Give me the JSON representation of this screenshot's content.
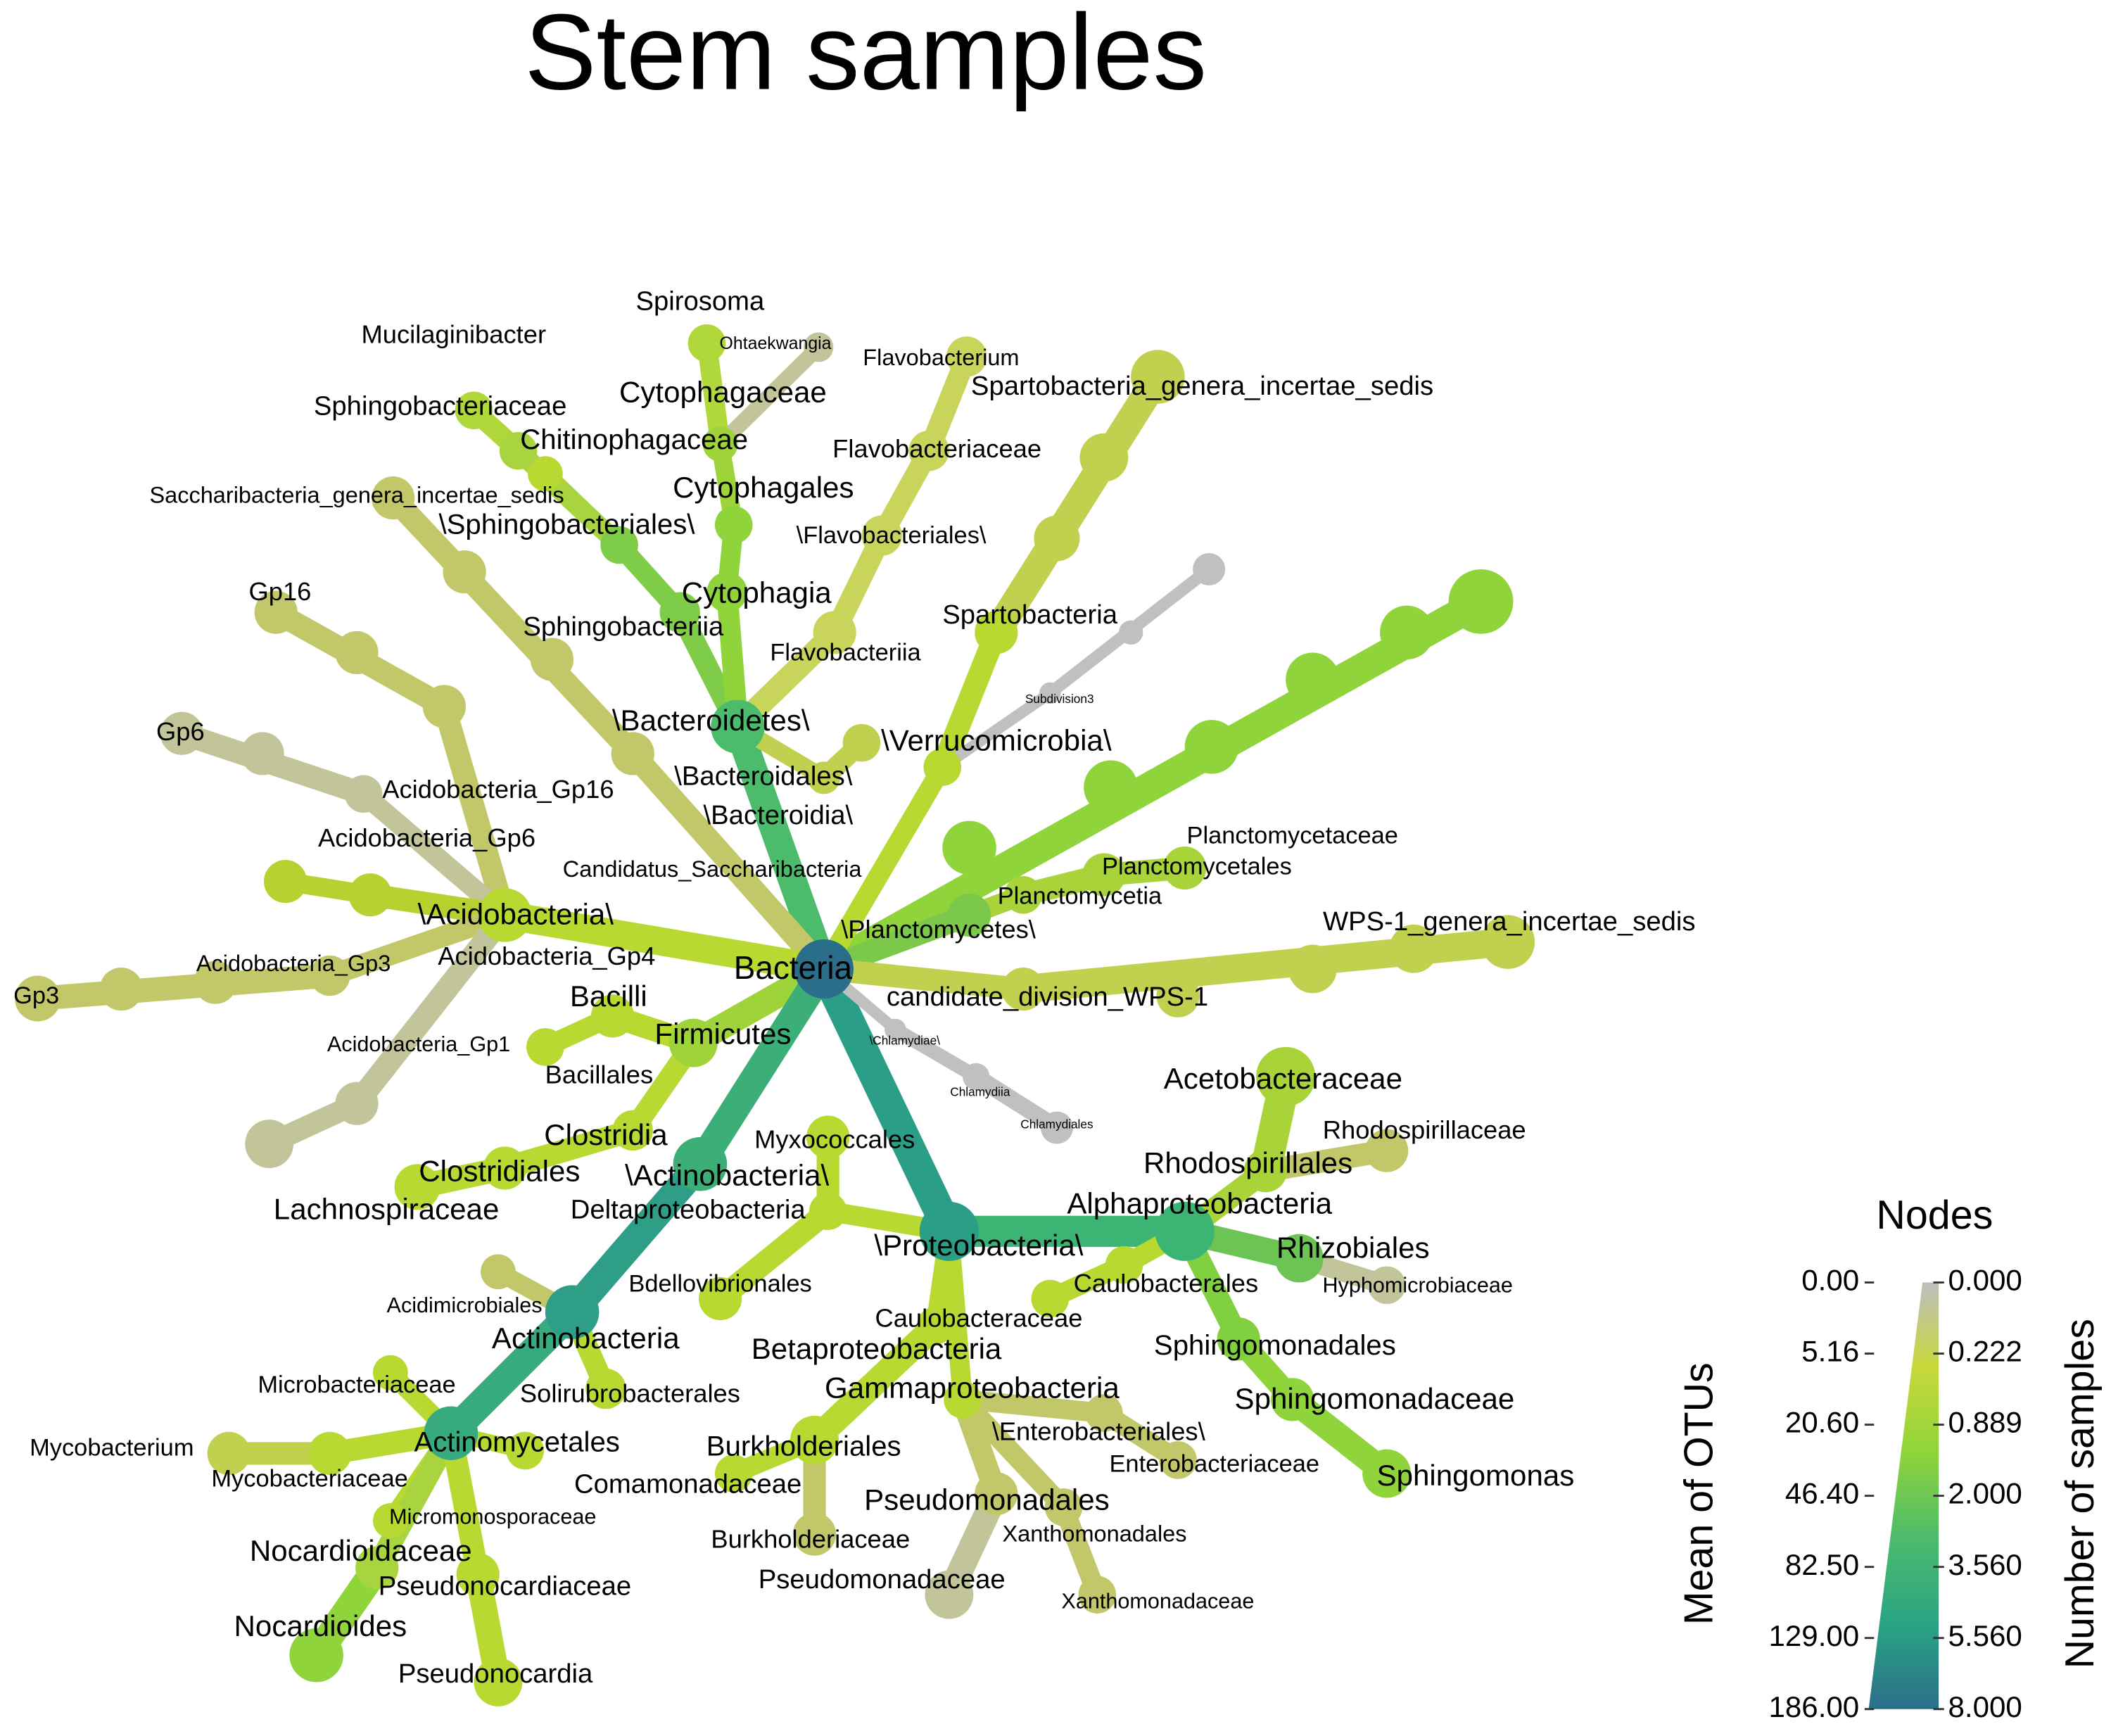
{
  "title": "Stem samples",
  "nodes": [
    {
      "label": "Bacteria",
      "parent": null,
      "color": "#2b6e8a"
    },
    {
      "label": "\\Bacteroidetes\\",
      "parent": 0,
      "color": "#4cbb6c"
    },
    {
      "label": "\\Bacteroidia\\",
      "parent": 1,
      "color": "#c2d050"
    },
    {
      "label": "\\Bacteroidales\\",
      "parent": 2,
      "color": "#c2d050"
    },
    {
      "label": "Sphingobacteriia",
      "parent": 1,
      "color": "#7fcc48"
    },
    {
      "label": "\\Sphingobacteriales\\",
      "parent": 4,
      "color": "#7fcc48"
    },
    {
      "label": "Chitinophagaceae",
      "parent": 5,
      "color": "#b8d832"
    },
    {
      "label": "Sphingobacteriaceae",
      "parent": 5,
      "color": "#a8d440"
    },
    {
      "label": "Mucilaginibacter",
      "parent": 7,
      "color": "#b0d83a"
    },
    {
      "label": "Cytophagia",
      "parent": 1,
      "color": "#8ed43a"
    },
    {
      "label": "Cytophagales",
      "parent": 9,
      "color": "#8ed43a"
    },
    {
      "label": "Cytophagaceae",
      "parent": 10,
      "color": "#9ed43a"
    },
    {
      "label": "Spirosoma",
      "parent": 11,
      "color": "#b0d83a"
    },
    {
      "label": "Ohtaekwangia",
      "parent": 11,
      "color": "#c2c49a"
    },
    {
      "label": "Flavobacteriia",
      "parent": 1,
      "color": "#c8d45a"
    },
    {
      "label": "\\Flavobacteriales\\",
      "parent": 14,
      "color": "#c8d45a"
    },
    {
      "label": "Flavobacteriaceae",
      "parent": 15,
      "color": "#c8d45a"
    },
    {
      "label": "Flavobacterium",
      "parent": 16,
      "color": "#c8d45a"
    },
    {
      "label": "Candidatus_Saccharibacteria",
      "parent": 0,
      "color": "#c2c86a"
    },
    {
      "label": "Saccharibacteria_genera_incertae_sedis",
      "parent": 18,
      "color": "#c2c86a"
    },
    {
      "label": "\\Acidobacteria\\",
      "parent": 0,
      "color": "#b8d832"
    },
    {
      "label": "Acidobacteria_Gp16",
      "parent": 20,
      "color": "#c2c86a"
    },
    {
      "label": "Gp16",
      "parent": 21,
      "color": "#c2c86a"
    },
    {
      "label": "Acidobacteria_Gp6",
      "parent": 20,
      "color": "#c2c49a"
    },
    {
      "label": "Gp6",
      "parent": 23,
      "color": "#c2c49a"
    },
    {
      "label": "Acidobacteria_Gp4",
      "parent": 20,
      "color": "#b8d030"
    },
    {
      "label": "Acidobacteria_Gp3",
      "parent": 20,
      "color": "#c2c86a"
    },
    {
      "label": "Gp3",
      "parent": 26,
      "color": "#c2c86a"
    },
    {
      "label": "Acidobacteria_Gp1",
      "parent": 20,
      "color": "#c2c49a"
    },
    {
      "label": "Firmicutes",
      "parent": 0,
      "color": "#9ed43a"
    },
    {
      "label": "Bacilli",
      "parent": 29,
      "color": "#b8d832"
    },
    {
      "label": "Bacillales",
      "parent": 30,
      "color": "#b8d832"
    },
    {
      "label": "Clostridia",
      "parent": 29,
      "color": "#b8d832"
    },
    {
      "label": "Clostridiales",
      "parent": 32,
      "color": "#b8d832"
    },
    {
      "label": "Lachnospiraceae",
      "parent": 33,
      "color": "#b8d832"
    },
    {
      "label": "\\Actinobacteria\\",
      "parent": 0,
      "color": "#3cae78"
    },
    {
      "label": "Actinobacteria",
      "parent": 35,
      "color": "#2e9e86"
    },
    {
      "label": "Acidimicrobiales",
      "parent": 36,
      "color": "#c2c86a"
    },
    {
      "label": "Solirubrobacterales",
      "parent": 36,
      "color": "#b8d832"
    },
    {
      "label": "Actinomycetales",
      "parent": 36,
      "color": "#38aa80"
    },
    {
      "label": "Microbacteriaceae",
      "parent": 39,
      "color": "#b8d832"
    },
    {
      "label": "Mycobacteriaceae",
      "parent": 39,
      "color": "#b8d832"
    },
    {
      "label": "Mycobacterium",
      "parent": 41,
      "color": "#c2d050"
    },
    {
      "label": "Micromonosporaceae",
      "parent": 39,
      "color": "#b8d832"
    },
    {
      "label": "Nocardioidaceae",
      "parent": 39,
      "color": "#a8d440"
    },
    {
      "label": "Nocardioides",
      "parent": 44,
      "color": "#8ed43a"
    },
    {
      "label": "Pseudonocardiaceae",
      "parent": 39,
      "color": "#b8d832"
    },
    {
      "label": "Pseudonocardia",
      "parent": 46,
      "color": "#b8d832"
    },
    {
      "label": "\\Proteobacteria\\",
      "parent": 0,
      "color": "#2a9e86"
    },
    {
      "label": "Deltaproteobacteria",
      "parent": 48,
      "color": "#b8d832"
    },
    {
      "label": "Myxococcales",
      "parent": 49,
      "color": "#b8d832"
    },
    {
      "label": "Bdellovibrionales",
      "parent": 49,
      "color": "#b8d832"
    },
    {
      "label": "Alphaproteobacteria",
      "parent": 48,
      "color": "#3cb474"
    },
    {
      "label": "Rhodospirillales",
      "parent": 52,
      "color": "#a8d43a"
    },
    {
      "label": "Acetobacteraceae",
      "parent": 53,
      "color": "#a8d43a"
    },
    {
      "label": "Rhodospirillaceae",
      "parent": 53,
      "color": "#c2c86a"
    },
    {
      "label": "Rhizobiales",
      "parent": 52,
      "color": "#6cc454"
    },
    {
      "label": "Hyphomicrobiaceae",
      "parent": 56,
      "color": "#c2c49a"
    },
    {
      "label": "Caulobacterales",
      "parent": 52,
      "color": "#b8d832"
    },
    {
      "label": "Caulobacteraceae",
      "parent": 58,
      "color": "#b8d832"
    },
    {
      "label": "Sphingomonadales",
      "parent": 52,
      "color": "#80d040"
    },
    {
      "label": "Sphingomonadaceae",
      "parent": 60,
      "color": "#8ed43a"
    },
    {
      "label": "Sphingomonas",
      "parent": 61,
      "color": "#8ed43a"
    },
    {
      "label": "Betaproteobacteria",
      "parent": 48,
      "color": "#b8d832"
    },
    {
      "label": "Burkholderiales",
      "parent": 63,
      "color": "#b8d832"
    },
    {
      "label": "Comamonadaceae",
      "parent": 64,
      "color": "#b8d832"
    },
    {
      "label": "Burkholderiaceae",
      "parent": 64,
      "color": "#c2c86a"
    },
    {
      "label": "Gammaproteobacteria",
      "parent": 48,
      "color": "#b8d832"
    },
    {
      "label": "\\Enterobacteriales\\",
      "parent": 67,
      "color": "#c2c86a"
    },
    {
      "label": "Enterobacteriaceae",
      "parent": 68,
      "color": "#c2c86a"
    },
    {
      "label": "Pseudomonadales",
      "parent": 67,
      "color": "#c2c86a"
    },
    {
      "label": "Pseudomonadaceae",
      "parent": 70,
      "color": "#c2c49a"
    },
    {
      "label": "Xanthomonadales",
      "parent": 67,
      "color": "#c2c86a"
    },
    {
      "label": "Xanthomonadaceae",
      "parent": 72,
      "color": "#c2c86a"
    },
    {
      "label": "\\Chlamydiae\\",
      "parent": 0,
      "color": "#c0c0c0"
    },
    {
      "label": "Chlamydiia",
      "parent": 74,
      "color": "#c0c0c0"
    },
    {
      "label": "Chlamydiales",
      "parent": 75,
      "color": "#c0c0c0"
    },
    {
      "label": "\\Planctomycetes\\",
      "parent": 0,
      "color": "#7cc84a"
    },
    {
      "label": "Planctomycetia",
      "parent": 77,
      "color": "#a8d43a"
    },
    {
      "label": "Planctomycetales",
      "parent": 78,
      "color": "#a8d43a"
    },
    {
      "label": "Planctomycetaceae",
      "parent": 79,
      "color": "#a8d43a"
    },
    {
      "label": "\\Verrucomicrobia\\",
      "parent": 0,
      "color": "#b8d832"
    },
    {
      "label": "Spartobacteria",
      "parent": 81,
      "color": "#b8d832"
    },
    {
      "label": "Spartobacteria_genera_incertae_sedis",
      "parent": 82,
      "color": "#c2d050"
    },
    {
      "label": "Subdivision3",
      "parent": 81,
      "color": "#c0c0c0"
    },
    {
      "label": "candidate_division_WPS-1",
      "parent": 0,
      "color": "#c2d050"
    },
    {
      "label": "WPS-1_genera_incertae_sedis",
      "parent": 85,
      "color": "#c2d050"
    }
  ],
  "legend": {
    "title": "Nodes",
    "left_title": "Mean of OTUs",
    "right_title": "Number of samples",
    "left_ticks": [
      "0.00",
      "5.16",
      "20.60",
      "46.40",
      "82.50",
      "129.00",
      "186.00"
    ],
    "right_ticks": [
      "0.000",
      "0.222",
      "0.889",
      "2.000",
      "3.560",
      "5.560",
      "8.000"
    ],
    "colors": [
      "#bebebe",
      "#c8d83a",
      "#8ed43a",
      "#4cbb6c",
      "#2aa484",
      "#2b6e8a"
    ]
  }
}
